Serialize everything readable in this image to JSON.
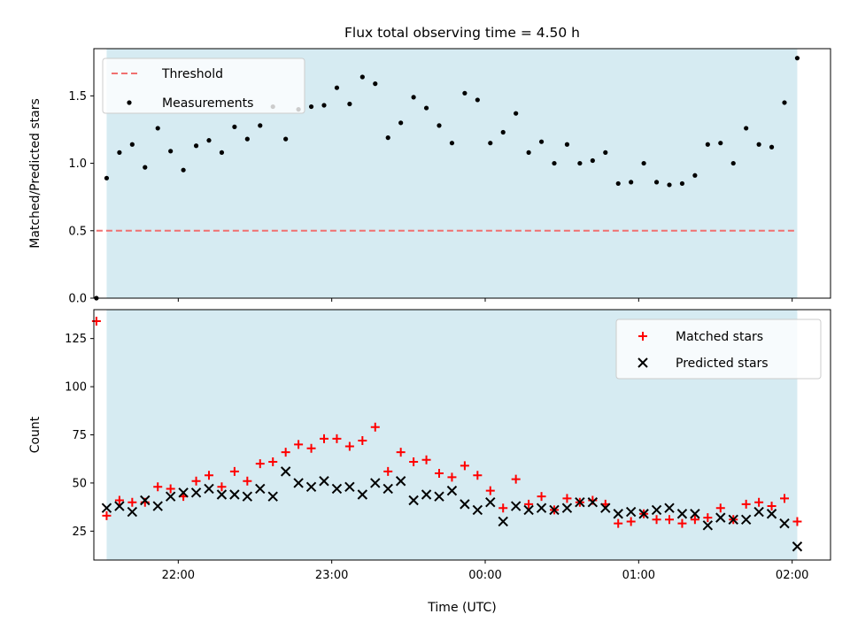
{
  "chart_data": [
    {
      "type": "scatter",
      "title": "Flux total observing time = 4.50 h",
      "xlabel": "",
      "ylabel": "Matched/Predicted stars",
      "xlim": [
        "21:27",
        "02:15"
      ],
      "ylim": [
        0,
        1.85
      ],
      "yticks": [
        "0.0",
        "0.5",
        "1.0",
        "1.5"
      ],
      "shaded_span": [
        "21:32",
        "02:02"
      ],
      "shade_color": "#add8e6",
      "legend_position": "top-left",
      "threshold": {
        "name": "Threshold",
        "y": 0.5,
        "x_start": "21:28",
        "x_end": "02:02",
        "color": "#f07070"
      },
      "series": [
        {
          "name": "Measurements",
          "color": "#000000",
          "x": [
            "21:28",
            "21:32",
            "21:37",
            "21:42",
            "21:47",
            "21:52",
            "21:57",
            "22:02",
            "22:07",
            "22:12",
            "22:17",
            "22:22",
            "22:27",
            "22:32",
            "22:37",
            "22:42",
            "22:47",
            "22:52",
            "22:57",
            "23:02",
            "23:07",
            "23:12",
            "23:17",
            "23:22",
            "23:27",
            "23:32",
            "23:37",
            "23:42",
            "23:47",
            "23:52",
            "23:57",
            "00:02",
            "00:07",
            "00:12",
            "00:17",
            "00:22",
            "00:27",
            "00:32",
            "00:37",
            "00:42",
            "00:47",
            "00:52",
            "00:57",
            "01:02",
            "01:07",
            "01:12",
            "01:17",
            "01:22",
            "01:27",
            "01:32",
            "01:37",
            "01:42",
            "01:47",
            "01:52",
            "01:57",
            "02:02"
          ],
          "values": [
            0.0,
            0.89,
            1.08,
            1.14,
            0.97,
            1.26,
            1.09,
            0.95,
            1.13,
            1.17,
            1.08,
            1.27,
            1.18,
            1.28,
            1.42,
            1.18,
            1.4,
            1.42,
            1.43,
            1.56,
            1.44,
            1.64,
            1.59,
            1.19,
            1.3,
            1.49,
            1.41,
            1.28,
            1.15,
            1.52,
            1.47,
            1.15,
            1.23,
            1.37,
            1.08,
            1.16,
            1.0,
            1.14,
            1.0,
            1.02,
            1.08,
            0.85,
            0.86,
            1.0,
            0.86,
            0.84,
            0.85,
            0.91,
            1.14,
            1.15,
            1.0,
            1.26,
            1.14,
            1.12,
            1.45,
            1.78
          ]
        }
      ]
    },
    {
      "type": "scatter",
      "title": "",
      "xlabel": "Time (UTC)",
      "ylabel": "Count",
      "xlim": [
        "21:27",
        "02:15"
      ],
      "ylim": [
        10,
        140
      ],
      "yticks": [
        "25",
        "50",
        "75",
        "100",
        "125"
      ],
      "xticks": [
        "22:00",
        "23:00",
        "00:00",
        "01:00",
        "02:00"
      ],
      "shaded_span": [
        "21:32",
        "02:02"
      ],
      "shade_color": "#add8e6",
      "legend_position": "top-right",
      "series": [
        {
          "name": "Matched stars",
          "marker": "plus",
          "color": "#ff0000",
          "x": [
            "21:28",
            "21:32",
            "21:37",
            "21:42",
            "21:47",
            "21:52",
            "21:57",
            "22:02",
            "22:07",
            "22:12",
            "22:17",
            "22:22",
            "22:27",
            "22:32",
            "22:37",
            "22:42",
            "22:47",
            "22:52",
            "22:57",
            "23:02",
            "23:07",
            "23:12",
            "23:17",
            "23:22",
            "23:27",
            "23:32",
            "23:37",
            "23:42",
            "23:47",
            "23:52",
            "23:57",
            "00:02",
            "00:07",
            "00:12",
            "00:17",
            "00:22",
            "00:27",
            "00:32",
            "00:37",
            "00:42",
            "00:47",
            "00:52",
            "00:57",
            "01:02",
            "01:07",
            "01:12",
            "01:17",
            "01:22",
            "01:27",
            "01:32",
            "01:37",
            "01:42",
            "01:47",
            "01:52",
            "01:57",
            "02:02"
          ],
          "values": [
            134,
            33,
            41,
            40,
            40,
            48,
            47,
            43,
            51,
            54,
            48,
            56,
            51,
            60,
            61,
            66,
            70,
            68,
            73,
            73,
            69,
            72,
            79,
            56,
            66,
            61,
            62,
            55,
            53,
            59,
            54,
            46,
            37,
            52,
            39,
            43,
            36,
            42,
            40,
            41,
            39,
            29,
            30,
            34,
            31,
            31,
            29,
            31,
            32,
            37,
            31,
            39,
            40,
            38,
            42,
            30
          ]
        },
        {
          "name": "Predicted stars",
          "marker": "x",
          "color": "#000000",
          "x": [
            "21:32",
            "21:37",
            "21:42",
            "21:47",
            "21:52",
            "21:57",
            "22:02",
            "22:07",
            "22:12",
            "22:17",
            "22:22",
            "22:27",
            "22:32",
            "22:37",
            "22:42",
            "22:47",
            "22:52",
            "22:57",
            "23:02",
            "23:07",
            "23:12",
            "23:17",
            "23:22",
            "23:27",
            "23:32",
            "23:37",
            "23:42",
            "23:47",
            "23:52",
            "23:57",
            "00:02",
            "00:07",
            "00:12",
            "00:17",
            "00:22",
            "00:27",
            "00:32",
            "00:37",
            "00:42",
            "00:47",
            "00:52",
            "00:57",
            "01:02",
            "01:07",
            "01:12",
            "01:17",
            "01:22",
            "01:27",
            "01:32",
            "01:37",
            "01:42",
            "01:47",
            "01:52",
            "01:57",
            "02:02"
          ],
          "values": [
            37,
            38,
            35,
            41,
            38,
            43,
            45,
            45,
            47,
            44,
            44,
            43,
            47,
            43,
            56,
            50,
            48,
            51,
            47,
            48,
            44,
            50,
            47,
            51,
            41,
            44,
            43,
            46,
            39,
            36,
            40,
            30,
            38,
            36,
            37,
            36,
            37,
            40,
            40,
            37,
            34,
            35,
            34,
            36,
            37,
            34,
            34,
            28,
            32,
            31,
            31,
            35,
            34,
            29,
            17
          ]
        }
      ]
    }
  ]
}
